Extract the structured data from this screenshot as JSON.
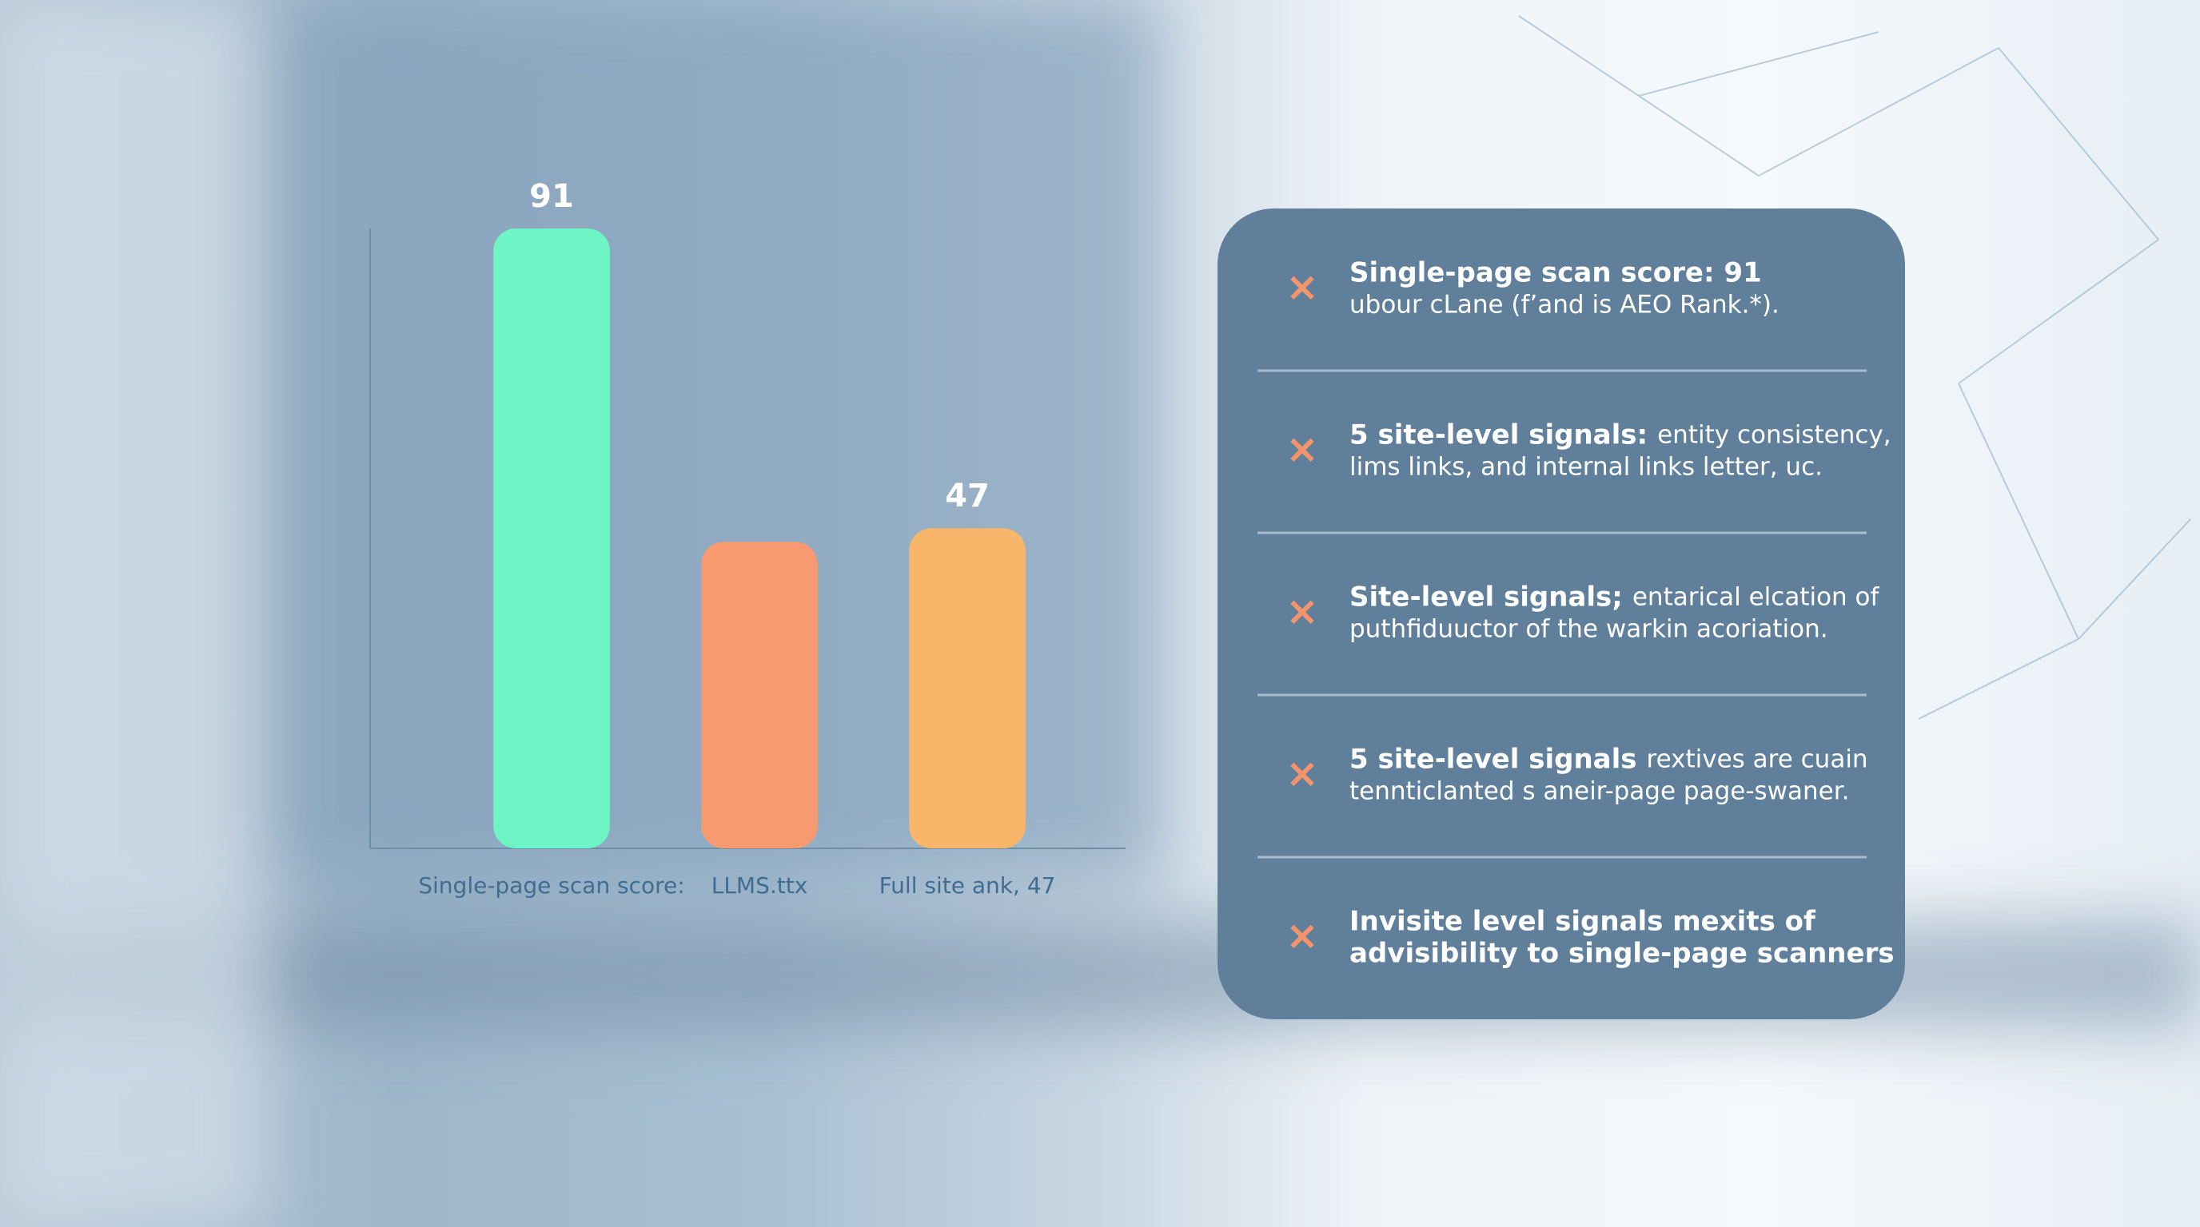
{
  "chart_data": {
    "type": "bar",
    "categories": [
      "Single-page scan score:",
      "LLMS.ttx",
      "Full site ank, 47"
    ],
    "values": [
      91,
      45,
      47
    ],
    "value_labels": [
      "91",
      null,
      "47"
    ],
    "colors": [
      "#6ef5c6",
      "#f79a70",
      "#f9b66a"
    ],
    "ylim": [
      0,
      91
    ]
  },
  "panel": {
    "items": [
      {
        "lines": [
          {
            "bold": "Single-page scan score: 91"
          },
          {
            "text": "ubour cLane (f’and is AEO Rank.*)."
          }
        ]
      },
      {
        "lines": [
          {
            "bold": "5 site-level signals:",
            "text": "entity consistency,"
          },
          {
            "text": "lims links, and internal links letter, uc."
          }
        ]
      },
      {
        "lines": [
          {
            "bold": "Site-level signals;",
            "text": "entarical elcation of"
          },
          {
            "text": "puthfiduuctor of the warkin acoriation."
          }
        ]
      },
      {
        "lines": [
          {
            "bold": "5 site-level signals",
            "text": "rextives are cuain"
          },
          {
            "text": "tennticlanted s aneir-page page-swaner."
          }
        ]
      },
      {
        "lines": [
          {
            "bold": "Invisite level signals mexits of"
          },
          {
            "bold": "advisibility to single-page scanners"
          }
        ]
      }
    ]
  }
}
